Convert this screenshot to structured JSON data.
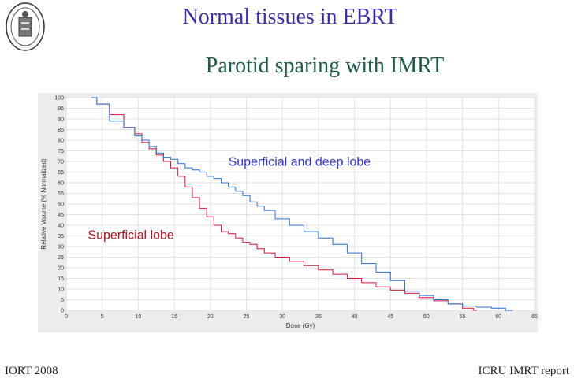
{
  "slide": {
    "title": "Normal tissues in EBRT",
    "subtitle": "Parotid sparing with IMRT",
    "footer_left": "IORT 2008",
    "footer_right": "ICRU IMRT report"
  },
  "colors": {
    "title": "#3b2fa4",
    "subtitle": "#1f5a4a",
    "series_red": "#d2163a",
    "series_blue": "#2a6fd0",
    "label_red": "#b01020",
    "label_blue": "#2f36c8"
  },
  "chart_data": {
    "type": "line",
    "title": "",
    "xlabel": "Dose (Gy)",
    "ylabel": "Relative Volume (% Normalized)",
    "xlim": [
      0,
      65
    ],
    "ylim": [
      0,
      100
    ],
    "xticks": [
      0,
      5,
      10,
      15,
      20,
      25,
      30,
      35,
      40,
      45,
      50,
      55,
      60,
      65
    ],
    "yticks": [
      0,
      5,
      10,
      15,
      20,
      25,
      30,
      35,
      40,
      45,
      50,
      55,
      60,
      65,
      70,
      75,
      80,
      85,
      90,
      95,
      100
    ],
    "grid": true,
    "series": [
      {
        "name": "Superficial lobe",
        "color": "#d2163a",
        "x": [
          3.5,
          5,
          7,
          9,
          10,
          11,
          12,
          13,
          14,
          15,
          16,
          17,
          18,
          19,
          20,
          21,
          22,
          23,
          24,
          25,
          26,
          27,
          28,
          30,
          32,
          34,
          36,
          38,
          40,
          42,
          44,
          46,
          48,
          50,
          52,
          54,
          56,
          57
        ],
        "y": [
          100,
          97,
          92,
          86,
          83,
          79,
          76,
          73,
          70,
          67,
          63,
          58,
          53,
          48,
          44,
          40,
          37,
          36,
          34,
          32,
          31,
          29,
          27,
          25,
          23,
          21,
          19,
          17,
          15,
          13,
          11,
          9.5,
          8,
          6,
          4.5,
          3,
          1,
          0
        ]
      },
      {
        "name": "Superficial and deep lobe",
        "color": "#2a6fd0",
        "x": [
          3.5,
          5,
          7,
          9,
          10,
          11,
          12,
          13,
          14,
          15,
          16,
          17,
          18,
          19,
          20,
          21,
          22,
          23,
          24,
          25,
          26,
          27,
          28,
          30,
          32,
          34,
          36,
          38,
          40,
          42,
          44,
          46,
          48,
          50,
          52,
          54,
          56,
          58,
          60,
          62
        ],
        "y": [
          100,
          97,
          89,
          86,
          82,
          80,
          77,
          74,
          72,
          71,
          69,
          67,
          66,
          65,
          63,
          62,
          60,
          58,
          56,
          54,
          51,
          49,
          47,
          43,
          40,
          37,
          34,
          31,
          27,
          22,
          18,
          14,
          9,
          7,
          5,
          3,
          2,
          1.5,
          1,
          0
        ]
      }
    ],
    "annotations": [
      {
        "text": "Superficial and deep lobe",
        "series": 1
      },
      {
        "text": "Superficial lobe",
        "series": 0
      }
    ]
  }
}
